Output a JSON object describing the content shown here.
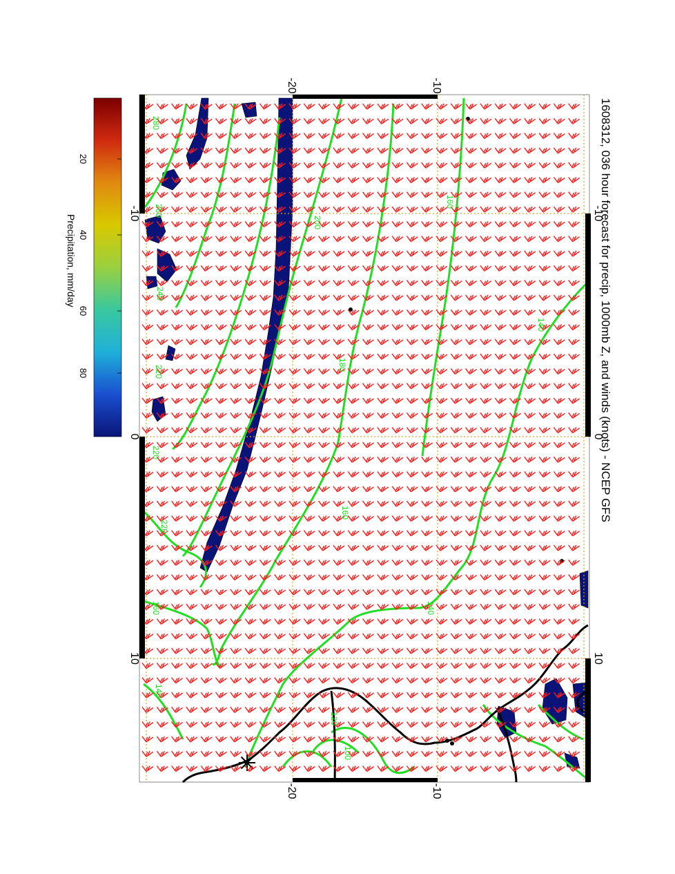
{
  "title": "1608312, 036 hour forecast for precip, 1000mb Z, and winds (knots) - NCEP GFS",
  "colorbar": {
    "label": "Precipitation, mm/day",
    "ticks": [
      "20",
      "40",
      "60",
      "80"
    ],
    "colors": [
      "#0a1478",
      "#1a4fd0",
      "#1fb0d8",
      "#3ac8a0",
      "#9ad040",
      "#d8c800",
      "#e08a10",
      "#d02a10",
      "#7a0000"
    ]
  },
  "axes": {
    "lon_ticks": [
      "-10",
      "0",
      "10"
    ],
    "lat_ticks": [
      "-20",
      "-10"
    ]
  },
  "contour_labels": [
    "280",
    "260",
    "240",
    "220",
    "200",
    "180",
    "160",
    "140",
    "120",
    "100"
  ],
  "colors": {
    "wind_barbs": "#ff1a1a",
    "contours": "#22dd22",
    "precip": "#0a1478",
    "coastline": "#000000",
    "graticule": "#e0a020"
  }
}
